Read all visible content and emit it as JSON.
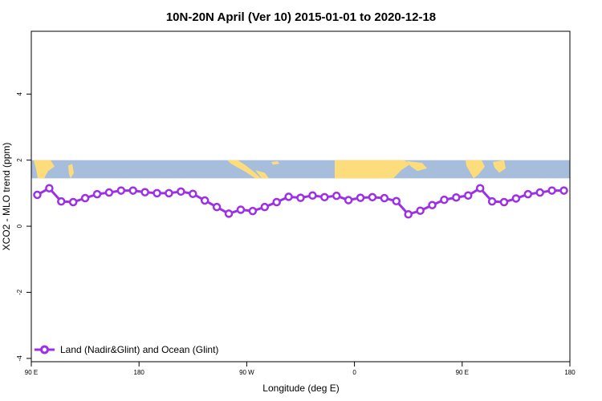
{
  "chart_data": {
    "type": "line",
    "title": "10N-20N April (Ver 10)   2015-01-01 to 2020-12-18",
    "xlabel": "Longitude (deg E)",
    "ylabel": "XCO2 - MLO trend (ppm)",
    "xlim": [
      90,
      450
    ],
    "ylim": [
      -4.1,
      5.9
    ],
    "x_ticks": [
      {
        "value": 90,
        "label": "90 E"
      },
      {
        "value": 162,
        "label": "180"
      },
      {
        "value": 234,
        "label": "90 W"
      },
      {
        "value": 306,
        "label": "0"
      },
      {
        "value": 378,
        "label": "90 E"
      },
      {
        "value": 450,
        "label": "180"
      }
    ],
    "y_ticks": [
      {
        "value": -4,
        "label": "-4"
      },
      {
        "value": -2,
        "label": "-2"
      },
      {
        "value": 0,
        "label": "0"
      },
      {
        "value": 2,
        "label": "2"
      },
      {
        "value": 4,
        "label": "4"
      }
    ],
    "grid": false,
    "legend_position": "bottom-left",
    "map_band": {
      "y_range": [
        1.45,
        2.0
      ],
      "ocean_color": "#a6bddb",
      "land_color": "#fddc7c"
    },
    "series": [
      {
        "name": "Land (Nadir&Glint) and Ocean (Glint)",
        "color": "#9b30e8",
        "x": [
          94,
          102,
          110,
          118,
          126,
          134,
          142,
          150,
          158,
          166,
          174,
          182,
          190,
          198,
          206,
          214,
          222,
          230,
          238,
          246,
          254,
          262,
          270,
          278,
          286,
          294,
          302,
          310,
          318,
          326,
          334,
          342,
          350,
          358,
          366,
          374,
          382,
          390,
          398,
          406,
          414,
          422,
          430,
          438,
          446
        ],
        "y": [
          0.95,
          1.15,
          0.75,
          0.73,
          0.85,
          0.97,
          1.02,
          1.08,
          1.08,
          1.03,
          1.0,
          1.0,
          1.05,
          0.98,
          0.78,
          0.58,
          0.38,
          0.5,
          0.46,
          0.58,
          0.73,
          0.89,
          0.86,
          0.93,
          0.88,
          0.92,
          0.79,
          0.86,
          0.88,
          0.85,
          0.76,
          0.36,
          0.47,
          0.64,
          0.8,
          0.87,
          0.93,
          1.15,
          0.75,
          0.73,
          0.84,
          0.97,
          1.02,
          1.08,
          1.08
        ]
      }
    ]
  }
}
